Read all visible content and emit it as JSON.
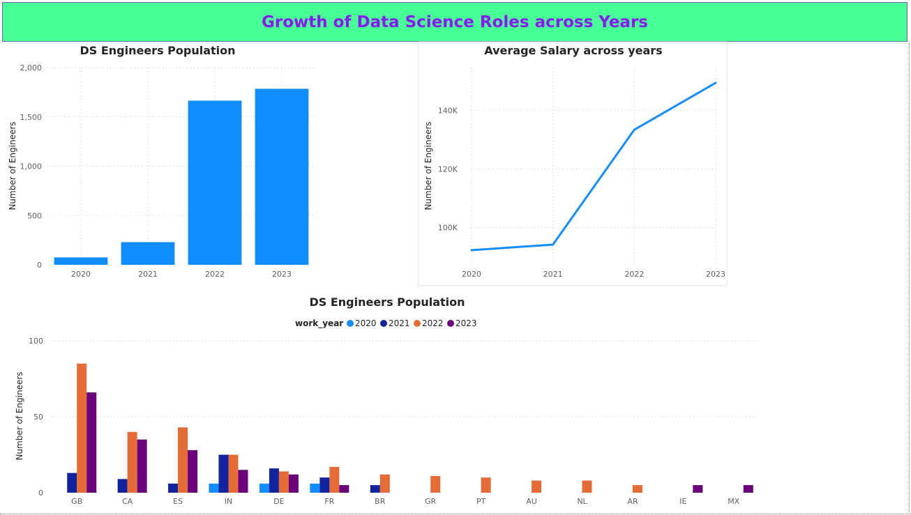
{
  "banner": {
    "title": "Growth of Data Science Roles across Years"
  },
  "colors": {
    "banner_bg": "#47ff96",
    "banner_text": "#8a18f2",
    "y2020": "#118dff",
    "y2021": "#12239e",
    "y2022": "#e66c37",
    "y2023": "#6b007b"
  },
  "chart_data": [
    {
      "id": "bar1",
      "type": "bar",
      "title": "DS Engineers Population",
      "ylabel": "Number of Engineers",
      "xlabel": "",
      "categories": [
        "2020",
        "2021",
        "2022",
        "2023"
      ],
      "values": [
        75,
        230,
        1665,
        1785
      ],
      "ylim": [
        0,
        2000
      ],
      "yticks": [
        0,
        500,
        1000,
        1500,
        2000
      ],
      "ytick_labels": [
        "0",
        "500",
        "1,000",
        "1,500",
        "2,000"
      ],
      "grid": true,
      "color": "#118dff"
    },
    {
      "id": "line1",
      "type": "line",
      "title": "Average Salary across years",
      "ylabel": "Number of Engineers",
      "xlabel": "",
      "x": [
        "2020",
        "2021",
        "2022",
        "2023"
      ],
      "values": [
        92300,
        94200,
        133400,
        149400
      ],
      "ylim": [
        87300,
        154600
      ],
      "yticks": [
        100000,
        120000,
        140000
      ],
      "ytick_labels": [
        "100K",
        "120K",
        "140K"
      ],
      "grid": true,
      "color": "#118dff"
    },
    {
      "id": "bar2",
      "type": "bar",
      "title": "DS Engineers Population",
      "ylabel": "Number of Engineers",
      "xlabel": "",
      "legend_title": "work_year",
      "legend_position": "top-center",
      "categories": [
        "GB",
        "CA",
        "ES",
        "IN",
        "DE",
        "FR",
        "BR",
        "GR",
        "PT",
        "AU",
        "NL",
        "AR",
        "IE",
        "MX"
      ],
      "series": [
        {
          "name": "2020",
          "color": "#118dff",
          "values": [
            0,
            0,
            0,
            6,
            6,
            6,
            0,
            0,
            0,
            0,
            0,
            0,
            0,
            0
          ]
        },
        {
          "name": "2021",
          "color": "#12239e",
          "values": [
            13,
            9,
            6,
            25,
            16,
            10,
            5,
            0,
            0,
            0,
            0,
            0,
            0,
            0
          ]
        },
        {
          "name": "2022",
          "color": "#e66c37",
          "values": [
            85,
            40,
            43,
            25,
            14,
            17,
            12,
            11,
            10,
            8,
            8,
            5,
            0,
            0
          ]
        },
        {
          "name": "2023",
          "color": "#6b007b",
          "values": [
            66,
            35,
            28,
            15,
            12,
            5,
            0,
            0,
            0,
            0,
            0,
            0,
            5,
            5
          ]
        }
      ],
      "ylim": [
        0,
        100
      ],
      "yticks": [
        0,
        50,
        100
      ],
      "ytick_labels": [
        "0",
        "50",
        "100"
      ],
      "grid": true
    }
  ]
}
